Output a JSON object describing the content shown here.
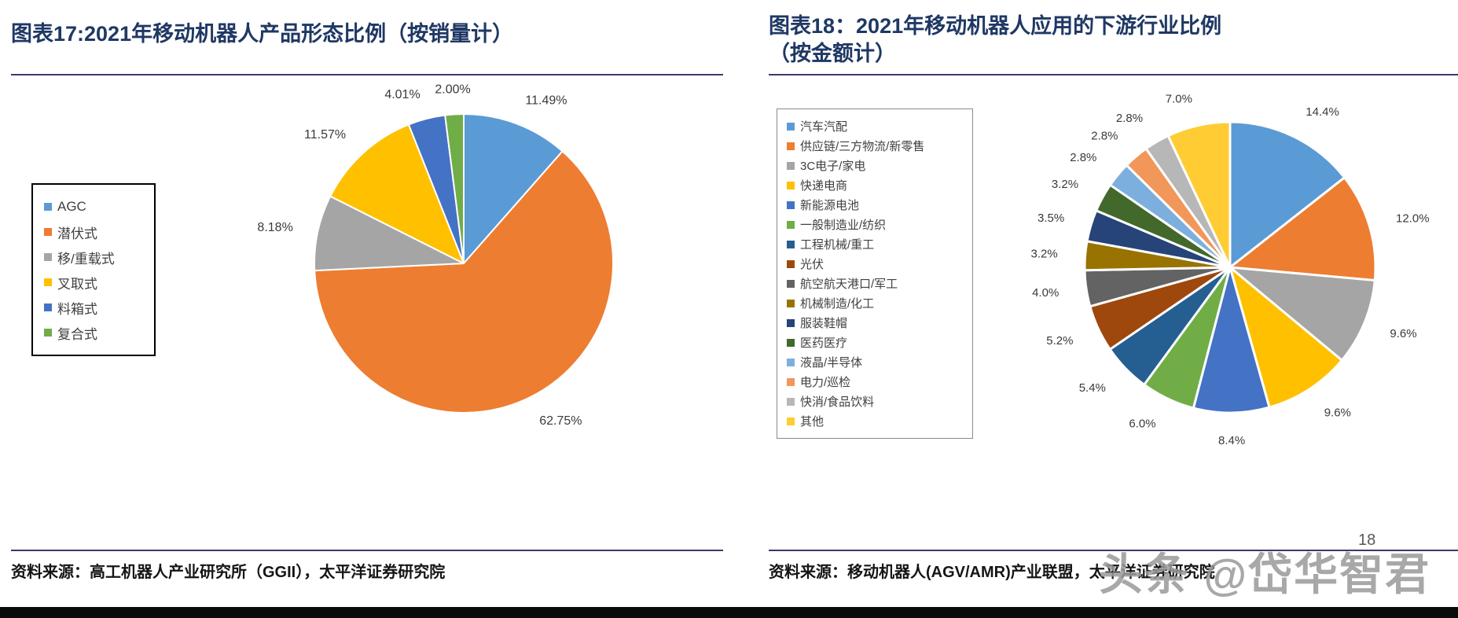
{
  "page": {
    "page_number": "18",
    "watermark_text": "头条 @岱华智君"
  },
  "left_figure": {
    "title": "图表17:2021年移动机器人产品形态比例（按销量计）",
    "source": "资料来源：高工机器人产业研究所（GGII），太平洋证券研究院"
  },
  "right_figure": {
    "title": "图表18：2021年移动机器人应用的下游行业比例（按金额计）",
    "source": "资料来源：移动机器人(AGV/AMR)产业联盟，太平洋证券研究院"
  },
  "chart_data": [
    {
      "type": "pie",
      "title": "2021年移动机器人产品形态比例（按销量计）",
      "labels": [
        "AGC",
        "潜伏式",
        "移/重载式",
        "叉取式",
        "料箱式",
        "复合式"
      ],
      "values": [
        11.49,
        62.75,
        8.18,
        11.57,
        4.01,
        2.0
      ],
      "value_labels": [
        "11.49%",
        "62.75%",
        "8.18%",
        "11.57%",
        "4.01%",
        "2.00%"
      ],
      "colors": [
        "#5B9BD5",
        "#ED7D31",
        "#A5A5A5",
        "#FFC000",
        "#4472C4",
        "#70AD47"
      ],
      "legend_position": "left",
      "start_angle_deg": 0,
      "direction": "clockwise",
      "label_position": "outside"
    },
    {
      "type": "pie",
      "title": "2021年移动机器人应用的下游行业比例（按金额计）",
      "labels": [
        "汽车汽配",
        "供应链/三方物流/新零售",
        "3C电子/家电",
        "快递电商",
        "新能源电池",
        "一般制造业/纺织",
        "工程机械/重工",
        "光伏",
        "航空航天港口/军工",
        "机械制造/化工",
        "服装鞋帽",
        "医药医疗",
        "液晶/半导体",
        "电力/巡检",
        "快消/食品饮料",
        "其他"
      ],
      "values": [
        14.4,
        12.0,
        9.6,
        9.6,
        8.4,
        6.0,
        5.4,
        5.2,
        4.0,
        3.2,
        3.5,
        3.2,
        2.8,
        2.8,
        2.8,
        7.0
      ],
      "value_labels": [
        "14.4%",
        "12.0%",
        "9.6%",
        "9.6%",
        "8.4%",
        "6.0%",
        "5.4%",
        "5.2%",
        "4.0%",
        "3.2%",
        "3.5%",
        "3.2%",
        "2.8%",
        "2.8%",
        "2.8%",
        "7.0%"
      ],
      "colors": [
        "#5B9BD5",
        "#ED7D31",
        "#A5A5A5",
        "#FFC000",
        "#4472C4",
        "#70AD47",
        "#255E91",
        "#9E480E",
        "#636363",
        "#997300",
        "#264478",
        "#43682B",
        "#7CAFDD",
        "#F1975A",
        "#B7B7B7",
        "#FFCD33"
      ],
      "legend_position": "left",
      "start_angle_deg": 0,
      "direction": "clockwise",
      "label_position": "outside"
    }
  ]
}
